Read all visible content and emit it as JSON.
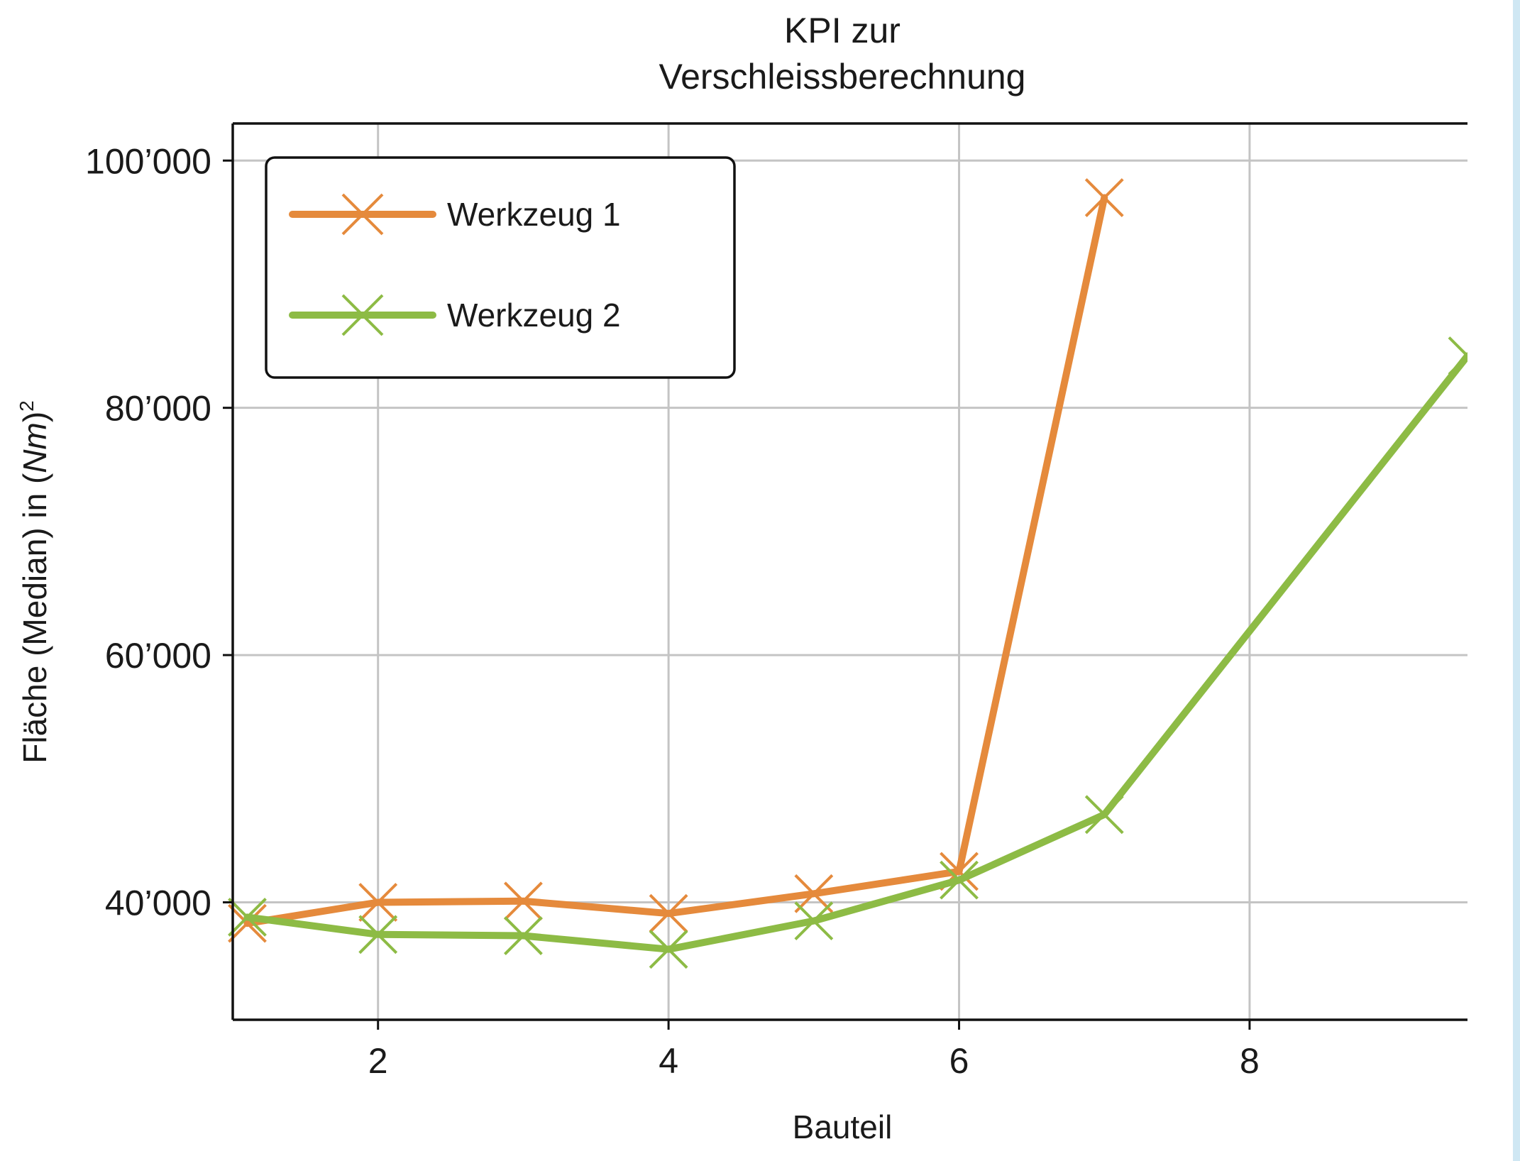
{
  "colors": {
    "werkzeug_1": "#e58a3c",
    "werkzeug_2": "#8dbb45",
    "grid": "#c4c4c4",
    "side_strip": "#cfe7f3"
  },
  "chart_data": {
    "type": "line",
    "title_lines": [
      "KPI zur",
      "Verschleissberechnung"
    ],
    "xlabel": "Bauteil",
    "ylabel": "Fläche (Median) in (Nm)",
    "ylabel_italic_part": "Nm",
    "ylabel_superscript": "2",
    "xlim": [
      1,
      9.5
    ],
    "ylim": [
      30500,
      103000
    ],
    "x_ticks": [
      2,
      4,
      6,
      8
    ],
    "x_tick_labels": [
      "2",
      "4",
      "6",
      "8"
    ],
    "y_ticks": [
      40000,
      60000,
      80000,
      100000
    ],
    "y_tick_labels": [
      "40’000",
      "60’000",
      "80’000",
      "100’000"
    ],
    "grid": true,
    "legend_position": "top-left",
    "marker": "x",
    "series": [
      {
        "name": "Werkzeug 1",
        "color_key": "werkzeug_1",
        "x": [
          1.1,
          2,
          3,
          4,
          5,
          6,
          7
        ],
        "y": [
          38300,
          40000,
          40100,
          39100,
          40700,
          42500,
          97000
        ]
      },
      {
        "name": "Werkzeug 2",
        "color_key": "werkzeug_2",
        "x": [
          1.1,
          2,
          3,
          4,
          5,
          6,
          7,
          9.5
        ],
        "y": [
          38800,
          37400,
          37300,
          36200,
          38500,
          41800,
          47100,
          84200
        ]
      }
    ]
  }
}
